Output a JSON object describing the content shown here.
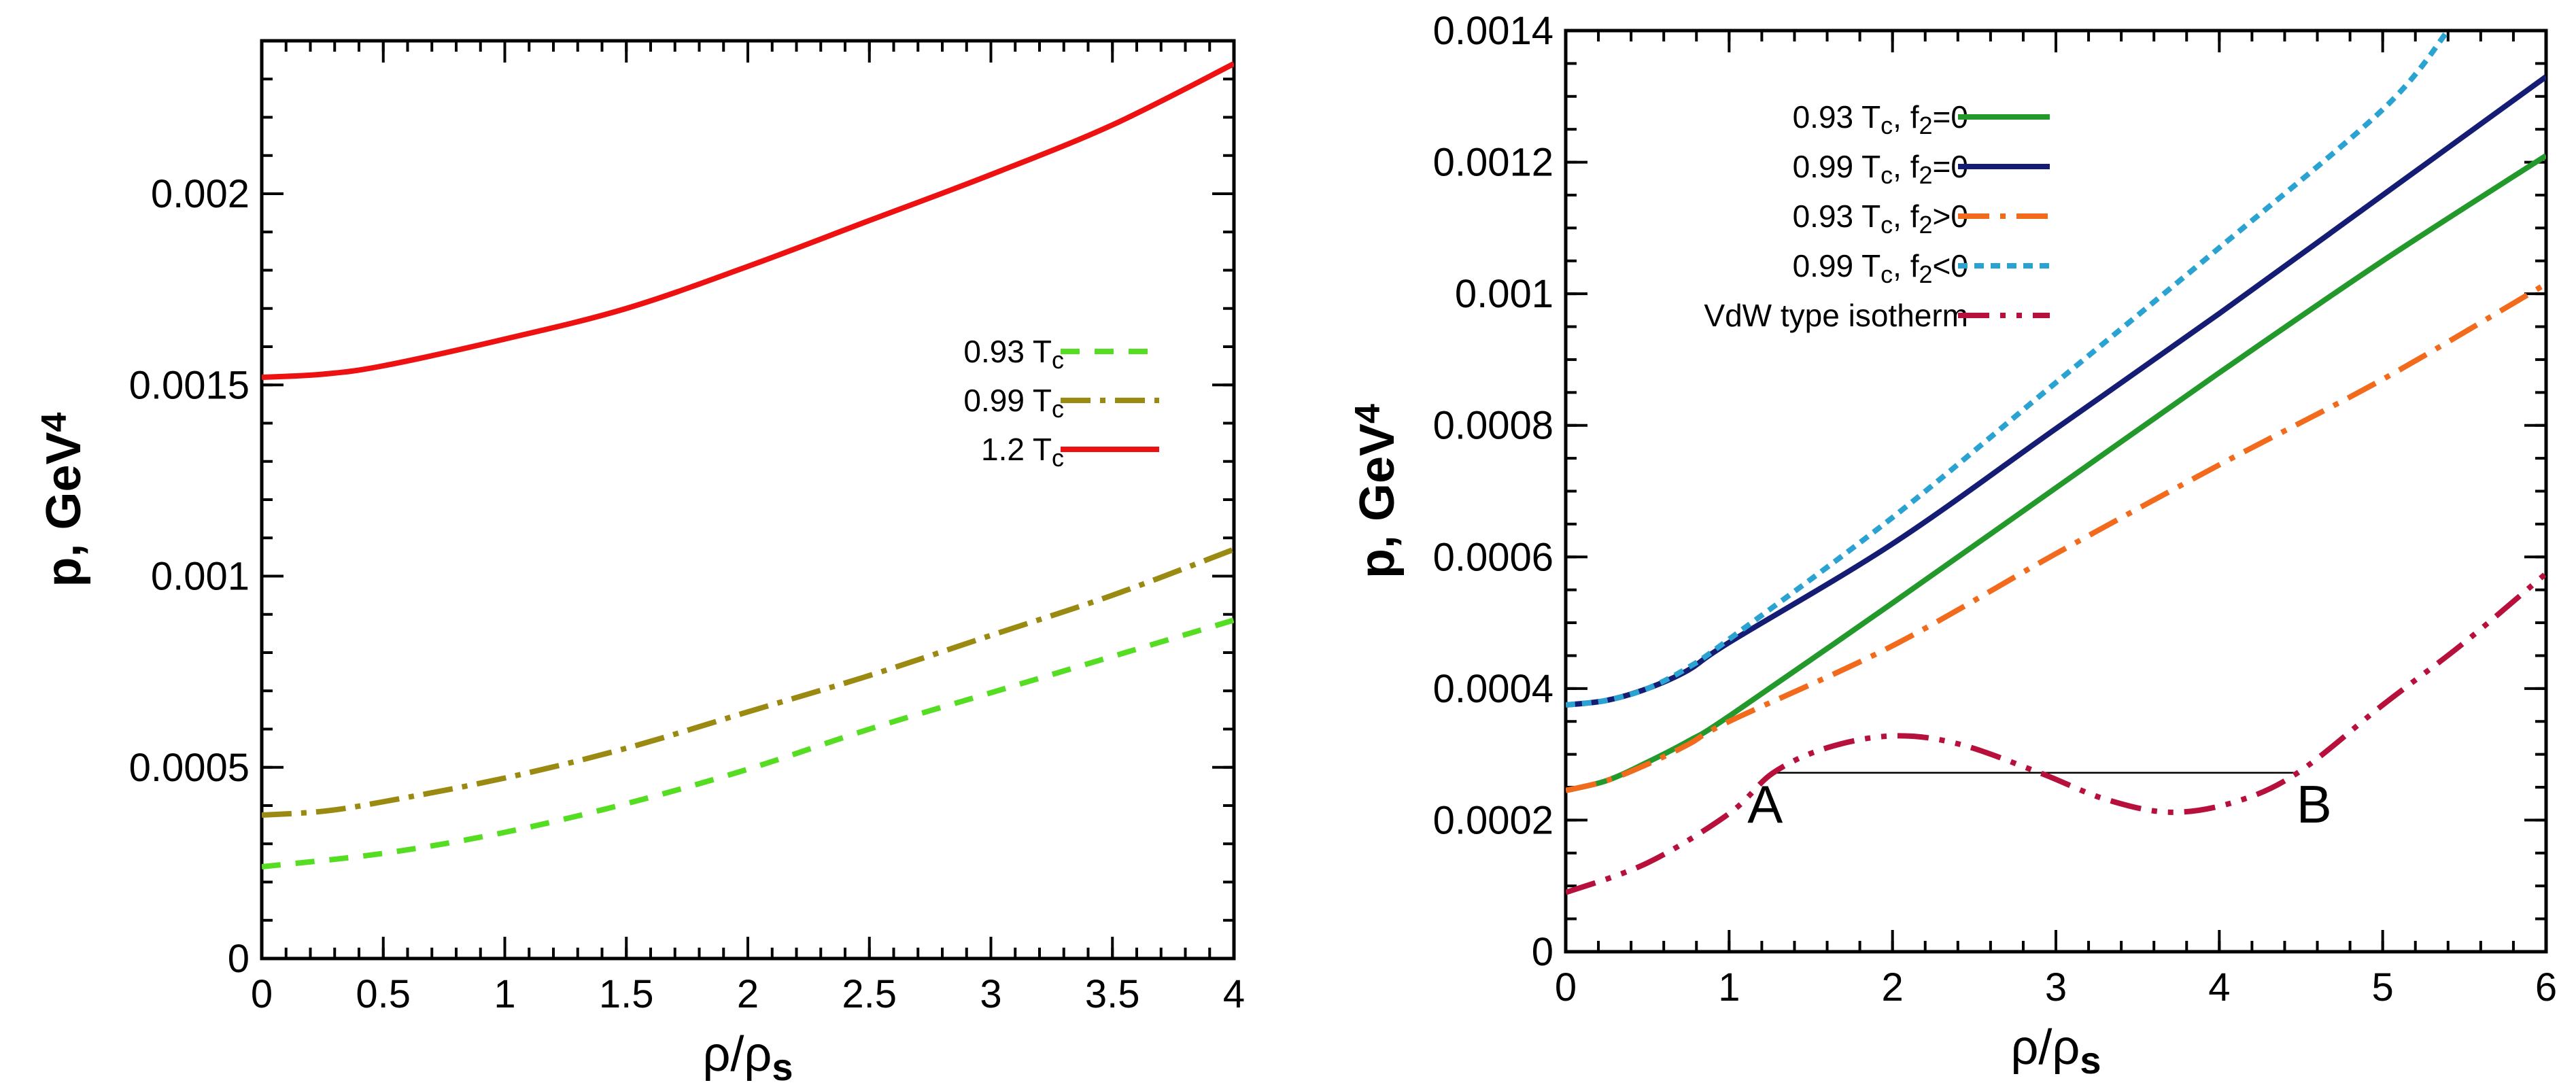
{
  "chart_data": [
    {
      "type": "line",
      "id": "left",
      "xlabel": "ρ/ρ",
      "xlabel_sub": "s",
      "ylabel": "p, GeV",
      "ylabel_sup": "4",
      "xlim": [
        0,
        4
      ],
      "ylim": [
        0,
        0.0024
      ],
      "xticks": [
        0,
        0.5,
        1,
        1.5,
        2,
        2.5,
        3,
        3.5,
        4
      ],
      "xtick_labels": [
        "0",
        "0.5",
        "1",
        "1.5",
        "2",
        "2.5",
        "3",
        "3.5",
        "4"
      ],
      "yticks": [
        0,
        0.0005,
        0.001,
        0.0015,
        0.002
      ],
      "ytick_labels": [
        "0",
        "0.0005",
        "0.001",
        "0.0015",
        "0.002"
      ],
      "legend_position": "center-right",
      "series": [
        {
          "name": "0.93 T",
          "sub": "c",
          "color": "#55dd22",
          "dash": "28 22",
          "x": [
            0,
            0.5,
            1,
            1.5,
            2,
            2.5,
            3,
            3.5,
            4
          ],
          "y": [
            0.00024,
            0.000275,
            0.00033,
            0.000405,
            0.000495,
            0.0006,
            0.000695,
            0.00079,
            0.000885
          ]
        },
        {
          "name": "0.99 T",
          "sub": "c",
          "color": "#9b8a12",
          "dash": "44 14 8 14",
          "x": [
            0,
            0.25,
            0.5,
            1,
            1.5,
            2,
            2.5,
            3,
            3.5,
            4
          ],
          "y": [
            0.000375,
            0.000385,
            0.00041,
            0.000472,
            0.00055,
            0.000645,
            0.00074,
            0.000845,
            0.00095,
            0.00107
          ]
        },
        {
          "name": "1.2 T",
          "sub": "c",
          "color": "#ee1111",
          "dash": "",
          "x": [
            0,
            0.25,
            0.5,
            1,
            1.5,
            2,
            2.5,
            3,
            3.5,
            4
          ],
          "y": [
            0.00152,
            0.001528,
            0.00155,
            0.00162,
            0.0017,
            0.00181,
            0.00193,
            0.00205,
            0.00218,
            0.00234
          ]
        }
      ]
    },
    {
      "type": "line",
      "id": "right",
      "xlabel": "ρ/ρ",
      "xlabel_sub": "s",
      "ylabel": "p, GeV",
      "ylabel_sup": "4",
      "xlim": [
        0,
        6
      ],
      "ylim": [
        0,
        0.0014
      ],
      "xticks": [
        0,
        1,
        2,
        3,
        4,
        5,
        6
      ],
      "xtick_labels": [
        "0",
        "1",
        "2",
        "3",
        "4",
        "5",
        "6"
      ],
      "yticks": [
        0,
        0.0002,
        0.0004,
        0.0006,
        0.0008,
        0.001,
        0.0012,
        0.0014
      ],
      "ytick_labels": [
        "0",
        "0.0002",
        "0.0004",
        "0.0006",
        "0.0008",
        "0.001",
        "0.0012",
        "0.0014"
      ],
      "legend_position": "top-left",
      "series": [
        {
          "name": "0.93 T",
          "sub": "c",
          "suffix": ", f",
          "suffix_sub": "2",
          "suffix_end": "=0",
          "color": "#22992a",
          "dash": "",
          "x": [
            0,
            0.25,
            0.5,
            0.75,
            1,
            2,
            3,
            4,
            5,
            6
          ],
          "y": [
            0.000245,
            0.00026,
            0.000288,
            0.00032,
            0.000358,
            0.00053,
            0.000705,
            0.00088,
            0.00105,
            0.00121
          ]
        },
        {
          "name": "0.99 T",
          "sub": "c",
          "suffix": ", f",
          "suffix_sub": "2",
          "suffix_end": "=0",
          "color": "#141c74",
          "dash": "",
          "x": [
            0,
            0.25,
            0.5,
            0.75,
            1,
            2,
            3,
            4,
            5,
            6
          ],
          "y": [
            0.000375,
            0.000382,
            0.0004,
            0.000428,
            0.00047,
            0.00062,
            0.000795,
            0.00097,
            0.00115,
            0.00133
          ]
        },
        {
          "name": "0.93 T",
          "sub": "c",
          "suffix": ", f",
          "suffix_sub": "2",
          "suffix_end": ">0",
          "color": "#f26a1b",
          "dash": "46 16 8 16",
          "x": [
            0,
            0.25,
            0.5,
            0.75,
            1,
            2,
            3,
            4,
            5,
            6
          ],
          "y": [
            0.000245,
            0.00026,
            0.000285,
            0.000315,
            0.00035,
            0.000465,
            0.000605,
            0.00074,
            0.00087,
            0.001015
          ]
        },
        {
          "name": "0.99 T",
          "sub": "c",
          "suffix": ", f",
          "suffix_sub": "2",
          "suffix_end": "<0",
          "color": "#2aa3d2",
          "dash": "14 10",
          "x": [
            0,
            0.25,
            0.5,
            0.75,
            1,
            2,
            3,
            4,
            5,
            5.4
          ],
          "y": [
            0.000375,
            0.000382,
            0.0004,
            0.000432,
            0.000475,
            0.00066,
            0.000865,
            0.00107,
            0.00128,
            0.0014
          ]
        },
        {
          "name": "VdW type isotherm",
          "sub": "",
          "suffix": "",
          "suffix_sub": "",
          "suffix_end": "",
          "color": "#b8103c",
          "dash": "46 16 8 16 8 16",
          "x": [
            0,
            0.5,
            1,
            1.27,
            1.6,
            2,
            2.4,
            2.9,
            3.3,
            3.7,
            4.1,
            4.48,
            5,
            5.5,
            6
          ],
          "y": [
            9e-05,
            0.000135,
            0.00021,
            0.000272,
            0.00031,
            0.000328,
            0.000316,
            0.000272,
            0.000232,
            0.000212,
            0.000228,
            0.000272,
            0.000375,
            0.00047,
            0.000575
          ]
        }
      ],
      "annotations": [
        {
          "text": "A",
          "x": 1.22,
          "y": 0.000225
        },
        {
          "text": "B",
          "x": 4.58,
          "y": 0.000225
        }
      ],
      "maxwell_line": {
        "x": [
          1.27,
          4.48
        ],
        "y": 0.000272
      }
    }
  ]
}
